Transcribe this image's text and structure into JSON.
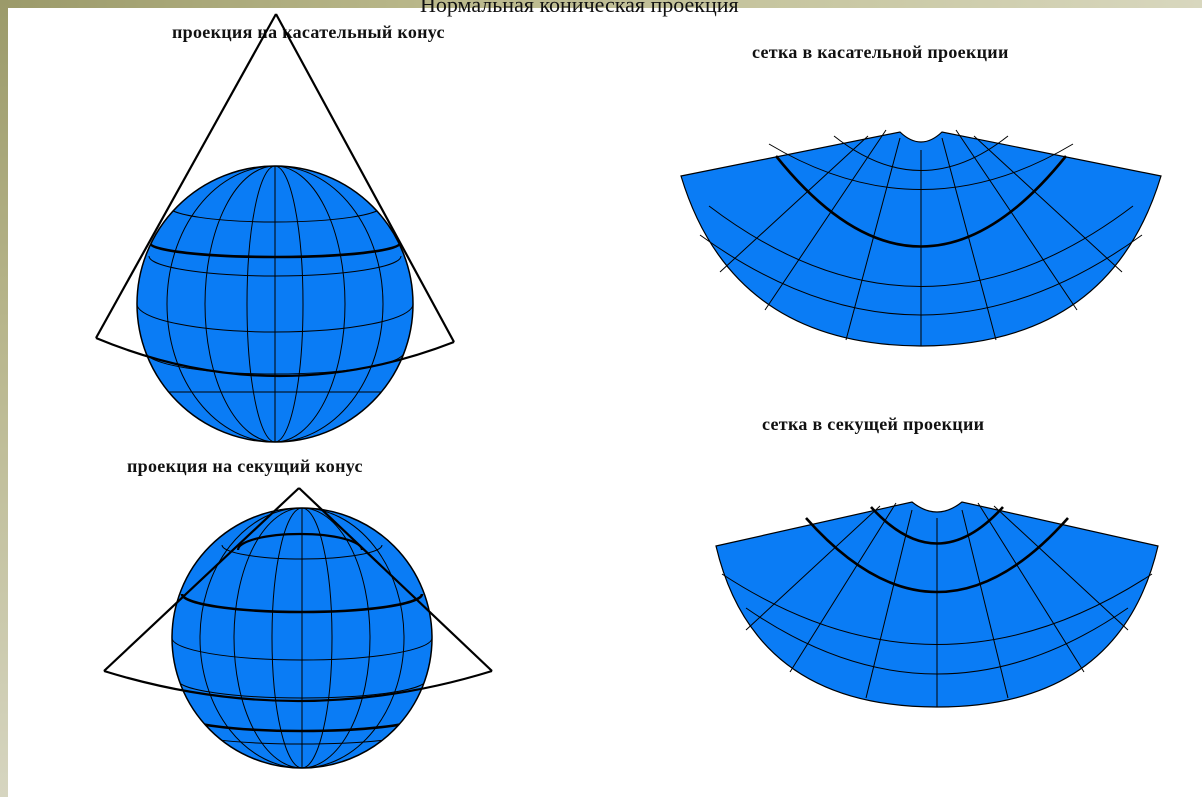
{
  "slide": {
    "title": "Нормальная коническая проекция",
    "labels": {
      "tangent_cone": "проекция на касательный конус",
      "tangent_grid": "сетка в касательной проекции",
      "secant_grid": "сетка в секущей проекции",
      "secant_cone": "проекция на секущий конус"
    }
  },
  "colors": {
    "globe_fill": "#0a7cf5",
    "grid_line": "#000000",
    "frame_left": "#9b9a6a",
    "frame_right": "#d8d7be"
  }
}
